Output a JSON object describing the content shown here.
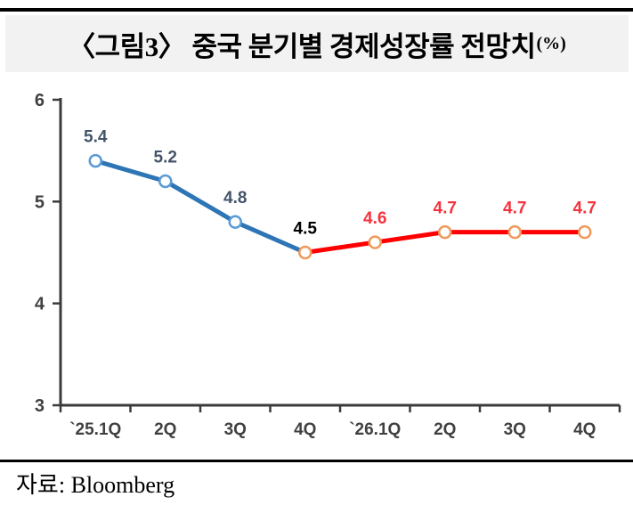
{
  "header": {
    "title": "〈그림3〉 중국 분기별 경제성장률 전망치",
    "title_suffix": "(%)"
  },
  "footer": {
    "source_text": "자료: Bloomberg"
  },
  "colors": {
    "header_bg": "#F2F2F2",
    "rule": "#000000",
    "background": "#FFFFFF"
  },
  "chart_data": {
    "type": "line",
    "title": "〈그림3〉 중국 분기별 경제성장률 전망치(%)",
    "unit": "%",
    "categories": [
      "`25.1Q",
      "2Q",
      "3Q",
      "4Q",
      "`26.1Q",
      "2Q",
      "3Q",
      "4Q"
    ],
    "values": [
      5.4,
      5.2,
      4.8,
      4.5,
      4.6,
      4.7,
      4.7,
      4.7
    ],
    "ylim": [
      3,
      6
    ],
    "yticks": [
      "3",
      "4",
      "5",
      "6"
    ],
    "grid": false,
    "legend": "none",
    "axis_color": "#3B3B3B",
    "tick_label_color": "#404040",
    "segments": [
      {
        "name": "2025-actual-line",
        "from": 0,
        "to": 3,
        "line_color": "#2E75B6",
        "marker_stroke": "#5B9BD5"
      },
      {
        "name": "2026-forecast-line",
        "from": 3,
        "to": 7,
        "line_color": "#FF0000",
        "marker_stroke": "#EE9A5C"
      }
    ],
    "point_labels": [
      {
        "text": "5.4",
        "color": "#44546A"
      },
      {
        "text": "5.2",
        "color": "#44546A"
      },
      {
        "text": "4.8",
        "color": "#44546A"
      },
      {
        "text": "4.5",
        "color": "#000000"
      },
      {
        "text": "4.6",
        "color": "#F5333F"
      },
      {
        "text": "4.7",
        "color": "#F5333F"
      },
      {
        "text": "4.7",
        "color": "#F5333F"
      },
      {
        "text": "4.7",
        "color": "#F5333F"
      }
    ]
  }
}
